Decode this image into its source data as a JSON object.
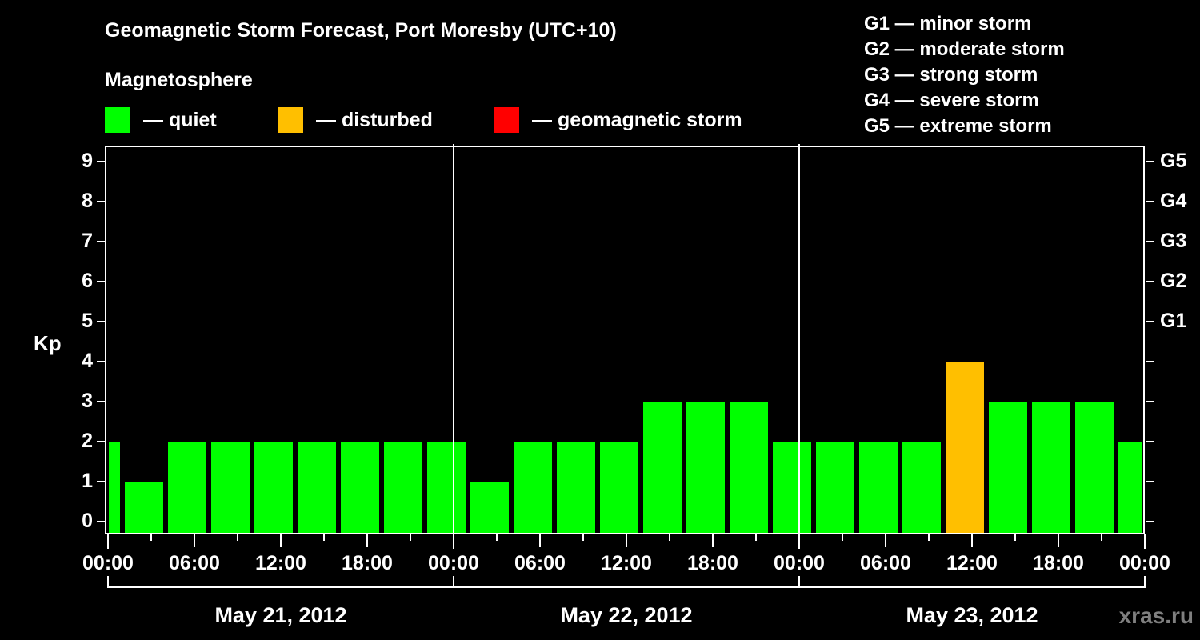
{
  "header": {
    "title": "Geomagnetic Storm Forecast, Port Moresby (UTC+10)",
    "subtitle": "Magnetosphere"
  },
  "legend": [
    {
      "label": "— quiet",
      "color": "#00ff00"
    },
    {
      "label": "— disturbed",
      "color": "#ffbf00"
    },
    {
      "label": "— geomagnetic storm",
      "color": "#ff0000"
    }
  ],
  "storm_scale": [
    "G1 — minor storm",
    "G2 — moderate storm",
    "G3 — strong storm",
    "G4 — severe storm",
    "G5 — extreme storm"
  ],
  "axes": {
    "ylabel": "Kp",
    "yticks": [
      "0",
      "1",
      "2",
      "3",
      "4",
      "5",
      "6",
      "7",
      "8",
      "9"
    ],
    "gticks": [
      "G1",
      "G2",
      "G3",
      "G4",
      "G5"
    ],
    "xticks": [
      "00:00",
      "06:00",
      "12:00",
      "18:00",
      "00:00",
      "06:00",
      "12:00",
      "18:00",
      "00:00",
      "06:00",
      "12:00",
      "18:00",
      "00:00"
    ],
    "days": [
      "May 21, 2012",
      "May 22, 2012",
      "May 23, 2012"
    ]
  },
  "watermark": "xras.ru",
  "chart_data": {
    "type": "bar",
    "title": "Geomagnetic Storm Forecast, Port Moresby (UTC+10)",
    "subtitle": "Magnetosphere",
    "xlabel": "",
    "ylabel": "Kp",
    "ylim": [
      0,
      9
    ],
    "grid": "horizontal dashed at Kp 5–9",
    "secondary_y_labels": {
      "5": "G1",
      "6": "G2",
      "7": "G3",
      "8": "G4",
      "9": "G5"
    },
    "legend": [
      {
        "name": "quiet",
        "color": "#00ff00"
      },
      {
        "name": "disturbed",
        "color": "#ffbf00"
      },
      {
        "name": "geomagnetic storm",
        "color": "#ff0000"
      }
    ],
    "categories": [
      "May 21 00:00",
      "May 21 01:00",
      "May 21 04:00",
      "May 21 07:00",
      "May 21 10:00",
      "May 21 13:00",
      "May 21 16:00",
      "May 21 19:00",
      "May 21 22:00",
      "May 22 01:00",
      "May 22 04:00",
      "May 22 07:00",
      "May 22 10:00",
      "May 22 13:00",
      "May 22 16:00",
      "May 22 19:00",
      "May 22 22:00",
      "May 23 01:00",
      "May 23 04:00",
      "May 23 07:00",
      "May 23 10:00",
      "May 23 13:00",
      "May 23 16:00",
      "May 23 19:00",
      "May 23 22:00"
    ],
    "values": [
      2,
      1,
      2,
      2,
      2,
      2,
      2,
      2,
      2,
      1,
      2,
      2,
      2,
      3,
      3,
      3,
      2,
      2,
      2,
      2,
      4,
      3,
      3,
      3,
      2
    ],
    "status": [
      "quiet",
      "quiet",
      "quiet",
      "quiet",
      "quiet",
      "quiet",
      "quiet",
      "quiet",
      "quiet",
      "quiet",
      "quiet",
      "quiet",
      "quiet",
      "quiet",
      "quiet",
      "quiet",
      "quiet",
      "quiet",
      "quiet",
      "quiet",
      "disturbed",
      "quiet",
      "quiet",
      "quiet",
      "quiet"
    ]
  }
}
